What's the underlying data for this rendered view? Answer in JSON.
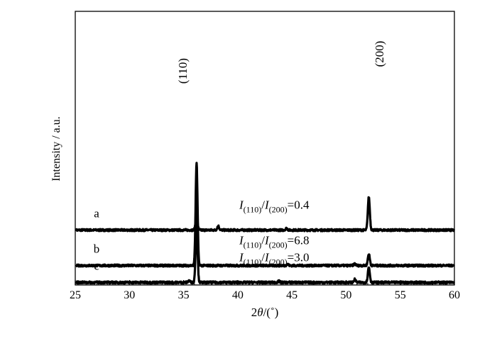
{
  "chart_data": {
    "type": "line",
    "xlabel_prefix": "2",
    "xlabel_theta": "θ",
    "xlabel_suffix": "/(˚)",
    "ylabel": "Intensity / a.u.",
    "xlim": [
      25,
      60
    ],
    "x_ticks": [
      25,
      30,
      35,
      40,
      45,
      50,
      55,
      60
    ],
    "grid": false,
    "peak_labels": [
      {
        "text": "(110)",
        "x": 36.2
      },
      {
        "text": "(200)",
        "x": 52.1
      }
    ],
    "series": [
      {
        "name": "a",
        "ratio_text": "=0.4",
        "baseline": 0.92,
        "peaks": [
          {
            "x": 36.2,
            "height": 0.25
          },
          {
            "x": 38.2,
            "height": 0.07
          },
          {
            "x": 44.5,
            "height": 0.03
          },
          {
            "x": 52.1,
            "height": 0.57
          }
        ]
      },
      {
        "name": "b",
        "ratio_text": "=6.8",
        "baseline": 0.31,
        "peaks": [
          {
            "x": 36.2,
            "height": 1.75
          },
          {
            "x": 44.6,
            "height": 0.02
          },
          {
            "x": 50.8,
            "height": 0.03
          },
          {
            "x": 52.1,
            "height": 0.2
          }
        ]
      },
      {
        "name": "c",
        "ratio_text": "=3.0",
        "baseline": 0.02,
        "peaks": [
          {
            "x": 35.5,
            "height": 0.03
          },
          {
            "x": 36.2,
            "height": 1.0
          },
          {
            "x": 43.8,
            "height": 0.02
          },
          {
            "x": 50.8,
            "height": 0.05
          },
          {
            "x": 52.1,
            "height": 0.26
          }
        ]
      }
    ],
    "line_color": "#000000"
  }
}
